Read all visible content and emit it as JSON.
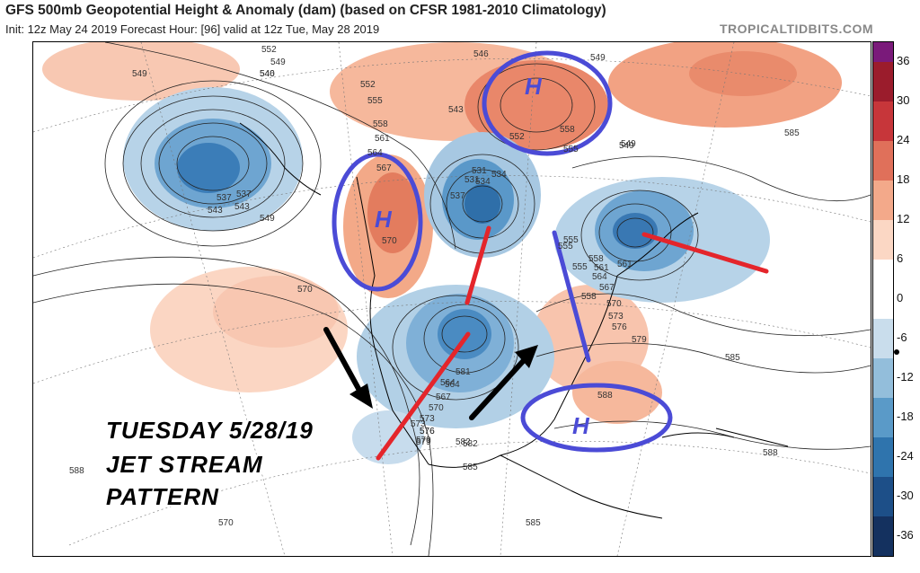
{
  "header": {
    "title": "GFS 500mb Geopotential Height & Anomaly (dam) (based on CFSR 1981-2010 Climatology)",
    "init_line": "Init: 12z May 24 2019   Forecast Hour: [96]   valid at 12z Tue, May 28 2019",
    "brand": "TROPICALTIDBITS.COM"
  },
  "annotation": {
    "line1": "TUESDAY 5/28/19",
    "line2": "JET STREAM",
    "line3": "PATTERN"
  },
  "high_labels": [
    "H",
    "H",
    "H"
  ],
  "colorbar": {
    "ticks": [
      "36",
      "30",
      "24",
      "18",
      "12",
      "6",
      "0",
      "-6",
      "-12",
      "-18",
      "-24",
      "-30",
      "-36"
    ],
    "colors": {
      "purple": "#7a1a7a",
      "red_dark": "#9b1c2c",
      "red": "#c7363a",
      "red_mid": "#e0705a",
      "salmon": "#f3a98a",
      "peach": "#fbd7c4",
      "white": "#ffffff",
      "blue_pale": "#c9ddec",
      "blue_light": "#93bedb",
      "blue_mid": "#5a9ac8",
      "blue": "#2f74ad",
      "blue_dark": "#1d4f88",
      "navy": "#14315f"
    }
  },
  "contour_labels": [
    "552",
    "549",
    "546",
    "552",
    "555",
    "558",
    "561",
    "564",
    "567",
    "570",
    "531",
    "534",
    "537",
    "543",
    "549",
    "540",
    "543",
    "546",
    "549",
    "552",
    "555",
    "558",
    "549",
    "555",
    "537",
    "534",
    "531",
    "537",
    "543",
    "549",
    "555",
    "558",
    "561",
    "564",
    "567",
    "570",
    "573",
    "576",
    "579",
    "582",
    "585",
    "570",
    "564",
    "561",
    "558",
    "555",
    "573",
    "576",
    "579",
    "581",
    "564",
    "567",
    "570",
    "573",
    "576",
    "579",
    "582",
    "585",
    "588",
    "585",
    "585",
    "588",
    "588",
    "570",
    "549"
  ],
  "map_colors": {
    "anomaly_positive": "#f4b69c",
    "anomaly_positive_strong": "#e78466",
    "anomaly_negative": "#a9c9e2",
    "anomaly_negative_strong": "#4f8fc2",
    "contour": "#222222",
    "circle": "#4b4bd6",
    "trough_axis": "#e4252b",
    "ridge_axis": "#4b4bd6",
    "arrow": "#000000"
  }
}
